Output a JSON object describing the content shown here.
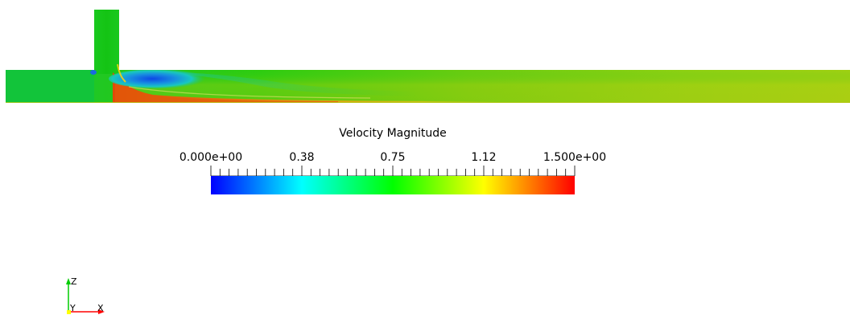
{
  "colorbar": {
    "title": "Velocity Magnitude",
    "range": [
      0,
      1.5
    ],
    "tick_labels": [
      {
        "value": 0.0,
        "label": "0.000e+00"
      },
      {
        "value": 0.375,
        "label": "0.38"
      },
      {
        "value": 0.75,
        "label": "0.75"
      },
      {
        "value": 1.125,
        "label": "1.12"
      },
      {
        "value": 1.5,
        "label": "1.500e+00"
      }
    ],
    "minor_tick_count": 41,
    "colormap": [
      "#0000ff",
      "#00ffff",
      "#00ff00",
      "#ffff00",
      "#ff0000"
    ]
  },
  "axes_triad": {
    "vertical_label": "Z",
    "origin_label": "Y",
    "horizontal_label": "X",
    "colors": {
      "z": "#00cc00",
      "x": "#ff0000",
      "origin": "#ffff00"
    }
  },
  "field_colors": {
    "background": "#ffffff",
    "base": "#19c619",
    "inlet": "#12c43a",
    "jet_core": "#e35a0a",
    "jet_mid": "#e8a010",
    "recirculation": "#1060e0",
    "recirc_edge": "#19c8b4",
    "far_field": "#a8cc10"
  }
}
